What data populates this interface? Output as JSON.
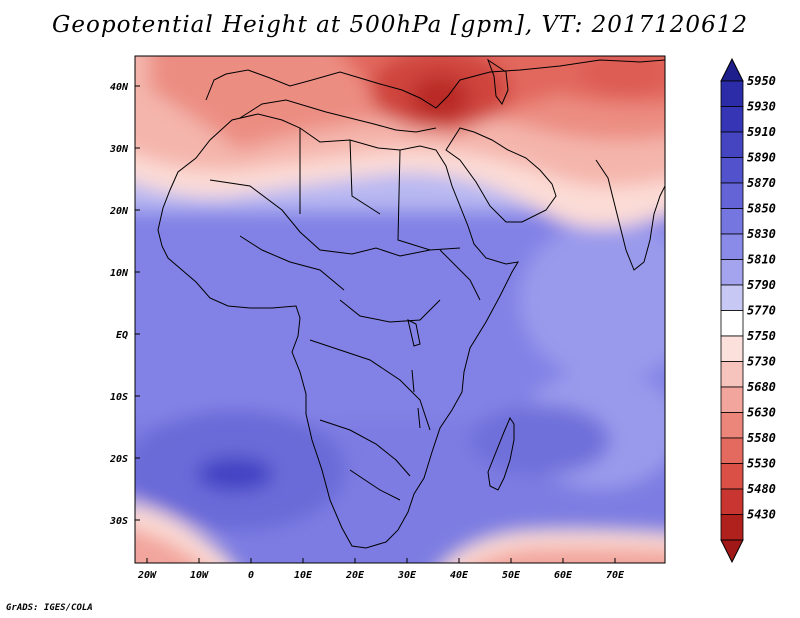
{
  "title": "Geopotential Height at 500hPa [gpm], VT: 2017120612",
  "credit": "GrADS: IGES/COLA",
  "axes": {
    "lat_labels": [
      "40N",
      "30N",
      "20N",
      "10N",
      "EQ",
      "10S",
      "20S",
      "30S"
    ],
    "lon_labels": [
      "20W",
      "10W",
      "0",
      "10E",
      "20E",
      "30E",
      "40E",
      "50E",
      "60E",
      "70E"
    ]
  },
  "colorbar": {
    "levels": [
      "5950",
      "5930",
      "5910",
      "5890",
      "5870",
      "5850",
      "5830",
      "5810",
      "5790",
      "5770",
      "5750",
      "5730",
      "5680",
      "5630",
      "5580",
      "5530",
      "5480",
      "5430"
    ],
    "colors": [
      "#2c2ca8",
      "#3535b5",
      "#4545c2",
      "#5252cc",
      "#6464d6",
      "#7676e0",
      "#8a8ae8",
      "#a4a4ee",
      "#c8c8f5",
      "#ffffff",
      "#fbe0dc",
      "#f7c4bd",
      "#f2a59c",
      "#ec867b",
      "#e46a5f",
      "#da4f46",
      "#c93631",
      "#b0201d"
    ],
    "low_arrow_color": "#a01818",
    "high_arrow_color": "#1e1e8c"
  },
  "palette": {
    "ocean_base": "#8a8ae8",
    "land_outline": "#000000"
  }
}
